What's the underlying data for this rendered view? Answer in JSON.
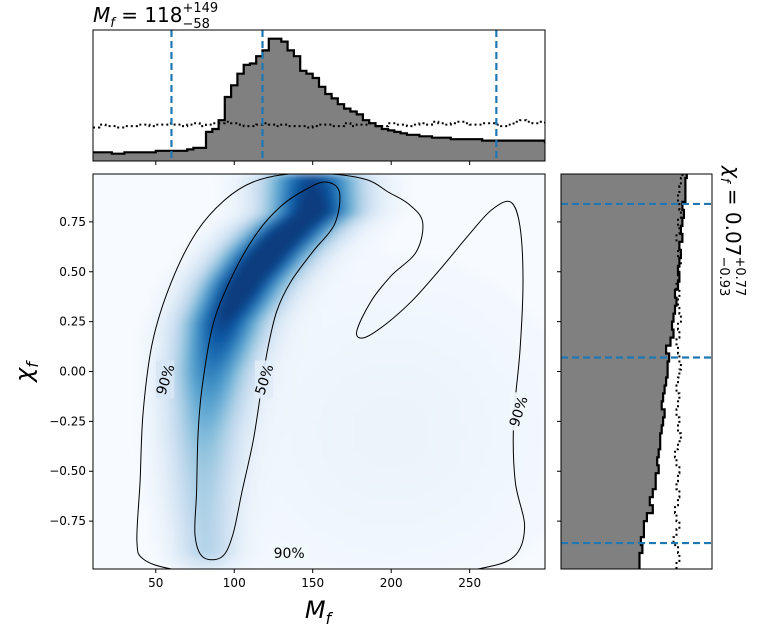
{
  "chart_data": {
    "type": "corner_plot",
    "main_panel": {
      "type": "heatmap",
      "colormap": "Blues",
      "xlabel": "M_f",
      "ylabel": "χ_f",
      "xlim": [
        10,
        298
      ],
      "ylim": [
        -0.99,
        0.99
      ],
      "xticks": [
        50,
        100,
        150,
        200,
        250
      ],
      "yticks": [
        -0.75,
        -0.5,
        -0.25,
        0.0,
        0.25,
        0.5,
        0.75
      ],
      "xtick_labels": [
        "50",
        "100",
        "150",
        "200",
        "250"
      ],
      "ytick_labels": [
        "−0.75",
        "−0.50",
        "−0.25",
        "0.00",
        "0.25",
        "0.50",
        "0.75"
      ],
      "density_ridge": [
        {
          "x": 82,
          "y": -0.88
        },
        {
          "x": 80,
          "y": -0.6
        },
        {
          "x": 81,
          "y": -0.3
        },
        {
          "x": 85,
          "y": 0.0
        },
        {
          "x": 93,
          "y": 0.25
        },
        {
          "x": 107,
          "y": 0.45
        },
        {
          "x": 122,
          "y": 0.6
        },
        {
          "x": 137,
          "y": 0.72
        },
        {
          "x": 150,
          "y": 0.8
        }
      ],
      "contours": [
        {
          "label": "50%",
          "points": [
            [
              75,
              -0.82
            ],
            [
              76,
              -0.6
            ],
            [
              77,
              -0.3
            ],
            [
              80,
              -0.05
            ],
            [
              87,
              0.25
            ],
            [
              100,
              0.5
            ],
            [
              115,
              0.7
            ],
            [
              130,
              0.83
            ],
            [
              145,
              0.91
            ],
            [
              158,
              0.95
            ],
            [
              167,
              0.9
            ],
            [
              164,
              0.74
            ],
            [
              150,
              0.6
            ],
            [
              136,
              0.45
            ],
            [
              127,
              0.3
            ],
            [
              121,
              0.1
            ],
            [
              117,
              -0.1
            ],
            [
              112,
              -0.35
            ],
            [
              105,
              -0.6
            ],
            [
              99,
              -0.82
            ],
            [
              92,
              -0.93
            ],
            [
              80,
              -0.93
            ],
            [
              75,
              -0.82
            ]
          ]
        },
        {
          "label": "90%",
          "points": [
            [
              38,
              -0.85
            ],
            [
              40,
              -0.55
            ],
            [
              42,
              -0.2
            ],
            [
              48,
              0.15
            ],
            [
              60,
              0.45
            ],
            [
              76,
              0.7
            ],
            [
              94,
              0.86
            ],
            [
              112,
              0.95
            ],
            [
              135,
              0.99
            ],
            [
              162,
              0.99
            ],
            [
              185,
              0.96
            ],
            [
              198,
              0.9
            ],
            [
              211,
              0.84
            ],
            [
              220,
              0.75
            ],
            [
              216,
              0.6
            ],
            [
              200,
              0.48
            ],
            [
              187,
              0.35
            ],
            [
              178,
              0.2
            ],
            [
              183,
              0.17
            ],
            [
              197,
              0.24
            ],
            [
              214,
              0.36
            ],
            [
              232,
              0.52
            ],
            [
              250,
              0.69
            ],
            [
              264,
              0.81
            ],
            [
              276,
              0.85
            ],
            [
              282,
              0.73
            ],
            [
              284,
              0.45
            ],
            [
              282,
              0.1
            ],
            [
              278,
              -0.25
            ],
            [
              279,
              -0.55
            ],
            [
              285,
              -0.78
            ],
            [
              278,
              -0.93
            ],
            [
              255,
              -0.99
            ],
            [
              220,
              -1.02
            ],
            [
              180,
              -1.03
            ],
            [
              140,
              -1.02
            ],
            [
              95,
              -1.02
            ],
            [
              60,
              -0.99
            ],
            [
              42,
              -0.94
            ],
            [
              38,
              -0.85
            ]
          ]
        }
      ],
      "contour_labels": [
        {
          "text": "90%",
          "x": 56,
          "y": -0.04
        },
        {
          "text": "50%",
          "x": 119,
          "y": -0.04
        },
        {
          "text": "90%",
          "x": 281,
          "y": -0.2
        },
        {
          "text": "90%",
          "x": 135,
          "y": -0.91
        }
      ]
    },
    "top_panel": {
      "type": "histogram",
      "title_parts": {
        "lhs": "M",
        "lhs_sub": "f",
        "eq": " = 118",
        "sup": "+149",
        "sub": "−58"
      },
      "bin_edges_start": 10,
      "bin_width": 4,
      "posterior_counts": [
        6,
        6,
        6,
        5,
        5,
        6,
        6,
        6,
        6,
        6,
        7,
        7,
        7,
        7,
        7,
        8,
        9,
        9,
        20,
        22,
        28,
        44,
        52,
        60,
        66,
        67,
        72,
        76,
        84,
        84,
        82,
        76,
        72,
        62,
        60,
        57,
        51,
        46,
        43,
        39,
        36,
        34,
        32,
        28,
        26,
        24,
        22,
        21,
        20,
        19,
        18,
        18,
        17,
        17,
        16,
        16,
        16,
        15,
        15,
        15,
        15,
        15,
        14,
        14,
        14,
        14,
        14,
        14,
        14,
        14,
        14,
        14,
        13,
        13,
        13,
        13,
        12,
        12,
        12,
        12,
        12,
        11
      ],
      "prior_counts": [
        23,
        25,
        24,
        24,
        23,
        24,
        24,
        25,
        25,
        24,
        25,
        25,
        26,
        25,
        24,
        25,
        26,
        24,
        25,
        26,
        26,
        27,
        26,
        25,
        24,
        24,
        25,
        26,
        25,
        24,
        25,
        24,
        24,
        24,
        23,
        24,
        25,
        25,
        24,
        24,
        26,
        24,
        25,
        25,
        26,
        24,
        24,
        26,
        25,
        25,
        24,
        25,
        26,
        25,
        27,
        26,
        25,
        26,
        27,
        26,
        25,
        25,
        26,
        26,
        25,
        24,
        25,
        27,
        28,
        27,
        26,
        27,
        25,
        26,
        26,
        25,
        26,
        27,
        25,
        26,
        27,
        26
      ],
      "ymax": 90,
      "quantile_lines": [
        60,
        118,
        267
      ]
    },
    "right_panel": {
      "type": "histogram",
      "orientation": "horizontal",
      "title_parts": {
        "lhs": "χ",
        "lhs_sub": "f",
        "eq": " = 0.07",
        "sup": "+0.77",
        "sub": "−0.93"
      },
      "bin_edges_start": -0.99,
      "bin_width": 0.04,
      "posterior_counts": [
        53,
        53,
        55,
        54,
        56,
        56,
        58,
        62,
        60,
        62,
        64,
        64,
        66,
        65,
        66,
        67,
        67,
        68,
        69,
        70,
        68,
        69,
        70,
        71,
        72,
        72,
        73,
        71,
        74,
        76,
        75,
        76,
        77,
        78,
        77,
        79,
        80,
        79,
        80,
        81,
        80,
        82,
        81,
        82,
        83,
        82,
        84,
        84,
        84,
        85,
        85,
        86,
        86,
        85,
        86,
        87,
        88
      ],
      "prior_counts": [
        78,
        80,
        79,
        76,
        78,
        80,
        78,
        77,
        79,
        80,
        78,
        79,
        80,
        78,
        77,
        79,
        81,
        79,
        80,
        78,
        79,
        80,
        78,
        79,
        80,
        81,
        80,
        79,
        78,
        80,
        79,
        81,
        80,
        79,
        80,
        78,
        79,
        80,
        81,
        79,
        80,
        78,
        80,
        79,
        81,
        80,
        79,
        80,
        81,
        82,
        80,
        79,
        82,
        81,
        80,
        79,
        80
      ],
      "xmax": 102,
      "quantile_lines": [
        -0.86,
        0.07,
        0.84
      ]
    }
  }
}
